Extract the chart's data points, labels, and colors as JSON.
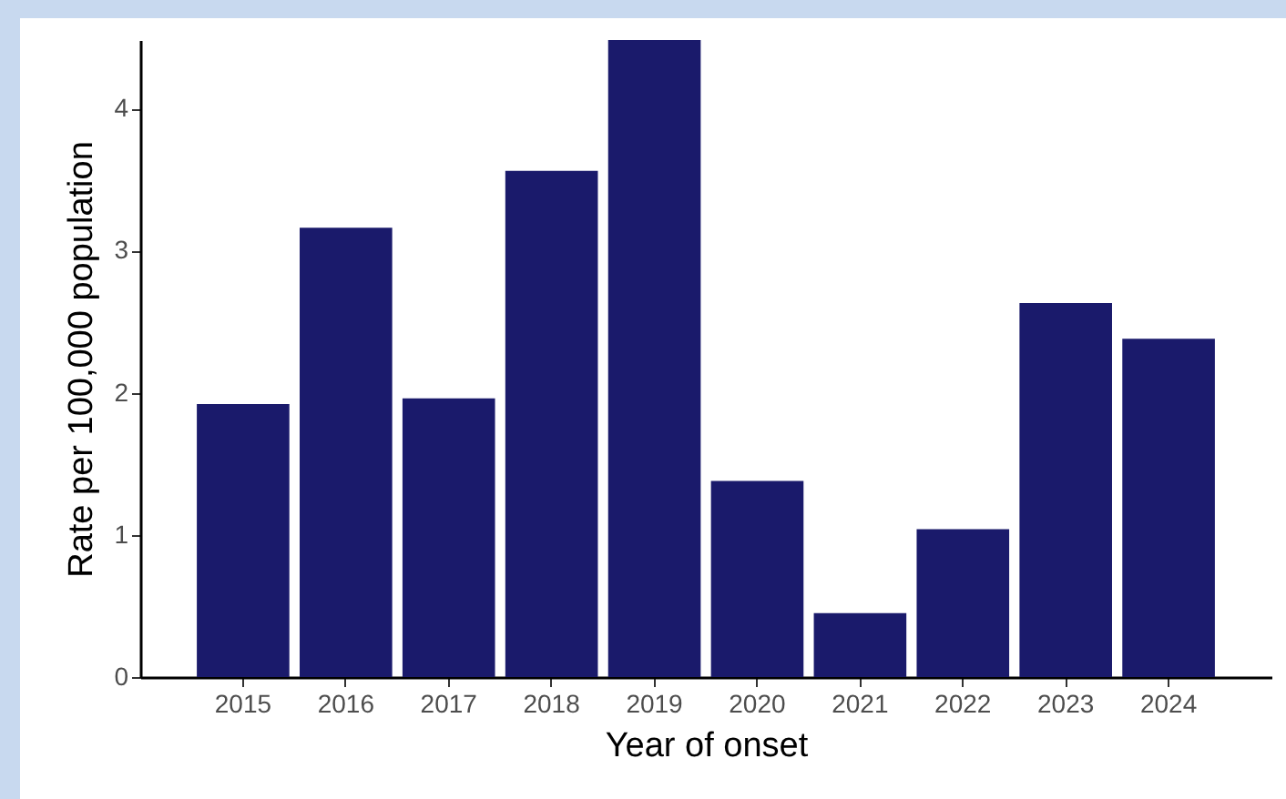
{
  "chart_data": {
    "type": "bar",
    "xlabel": "Year of onset",
    "ylabel": "Rate per 100,000 population",
    "categories": [
      "2015",
      "2016",
      "2017",
      "2018",
      "2019",
      "2020",
      "2021",
      "2022",
      "2023",
      "2024"
    ],
    "values": [
      1.92,
      3.16,
      1.96,
      3.56,
      4.48,
      1.38,
      0.45,
      1.04,
      2.63,
      2.38
    ],
    "color": "#1a1a6b",
    "ylim": [
      0,
      4.48
    ],
    "yticks": [
      0,
      1,
      2,
      3,
      4
    ],
    "grid": false
  }
}
